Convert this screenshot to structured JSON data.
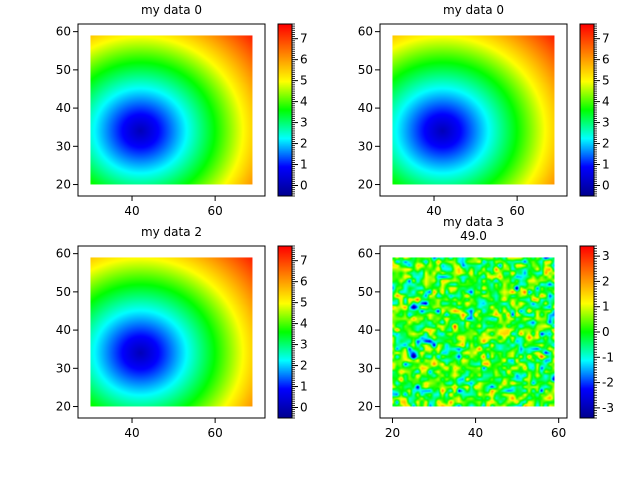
{
  "colormap": {
    "name": "jet-like",
    "stops": [
      "#00008f",
      "#0000ff",
      "#00ffff",
      "#00ff00",
      "#ffff00",
      "#ff7f00",
      "#ff0000"
    ]
  },
  "chart_data": [
    {
      "type": "heatmap",
      "title": "my data 0",
      "subtitle": "",
      "function": "radial distance from (42, 34)",
      "center": [
        42,
        34
      ],
      "data_extent": {
        "x": [
          30,
          69
        ],
        "y": [
          20,
          59
        ]
      },
      "xlim": [
        27,
        72
      ],
      "ylim": [
        17,
        62
      ],
      "xticks": [
        40,
        60
      ],
      "yticks": [
        20,
        30,
        40,
        50,
        60
      ],
      "colorbar": {
        "min": -0.5,
        "max": 7.7,
        "ticks": [
          0,
          1,
          2,
          3,
          4,
          5,
          6,
          7
        ]
      },
      "grid": false
    },
    {
      "type": "heatmap",
      "title": "my data 0",
      "subtitle": "",
      "function": "radial distance from (42, 34)",
      "center": [
        42,
        34
      ],
      "data_extent": {
        "x": [
          30,
          69
        ],
        "y": [
          20,
          59
        ]
      },
      "xlim": [
        27,
        72
      ],
      "ylim": [
        17,
        62
      ],
      "xticks": [
        40,
        60
      ],
      "yticks": [
        20,
        30,
        40,
        50,
        60
      ],
      "colorbar": {
        "min": -0.5,
        "max": 7.7,
        "ticks": [
          0,
          1,
          2,
          3,
          4,
          5,
          6,
          7
        ]
      },
      "grid": false
    },
    {
      "type": "heatmap",
      "title": "my data 2",
      "subtitle": "",
      "function": "radial distance from (42, 34)",
      "center": [
        42,
        34
      ],
      "data_extent": {
        "x": [
          30,
          69
        ],
        "y": [
          20,
          59
        ]
      },
      "xlim": [
        27,
        72
      ],
      "ylim": [
        17,
        62
      ],
      "xticks": [
        40,
        60
      ],
      "yticks": [
        20,
        30,
        40,
        50,
        60
      ],
      "colorbar": {
        "min": -0.5,
        "max": 7.7,
        "ticks": [
          0,
          1,
          2,
          3,
          4,
          5,
          6,
          7
        ]
      },
      "grid": false
    },
    {
      "type": "heatmap",
      "title": "my data 3",
      "subtitle": "49.0",
      "function": "random noise",
      "data_extent": {
        "x": [
          20,
          59
        ],
        "y": [
          20,
          59
        ]
      },
      "xlim": [
        17,
        62
      ],
      "ylim": [
        17,
        62
      ],
      "xticks": [
        20,
        40,
        60
      ],
      "yticks": [
        20,
        30,
        40,
        50,
        60
      ],
      "colorbar": {
        "min": -3.4,
        "max": 3.4,
        "ticks": [
          -3,
          -2,
          -1,
          0,
          1,
          2,
          3
        ]
      },
      "grid": false
    }
  ]
}
